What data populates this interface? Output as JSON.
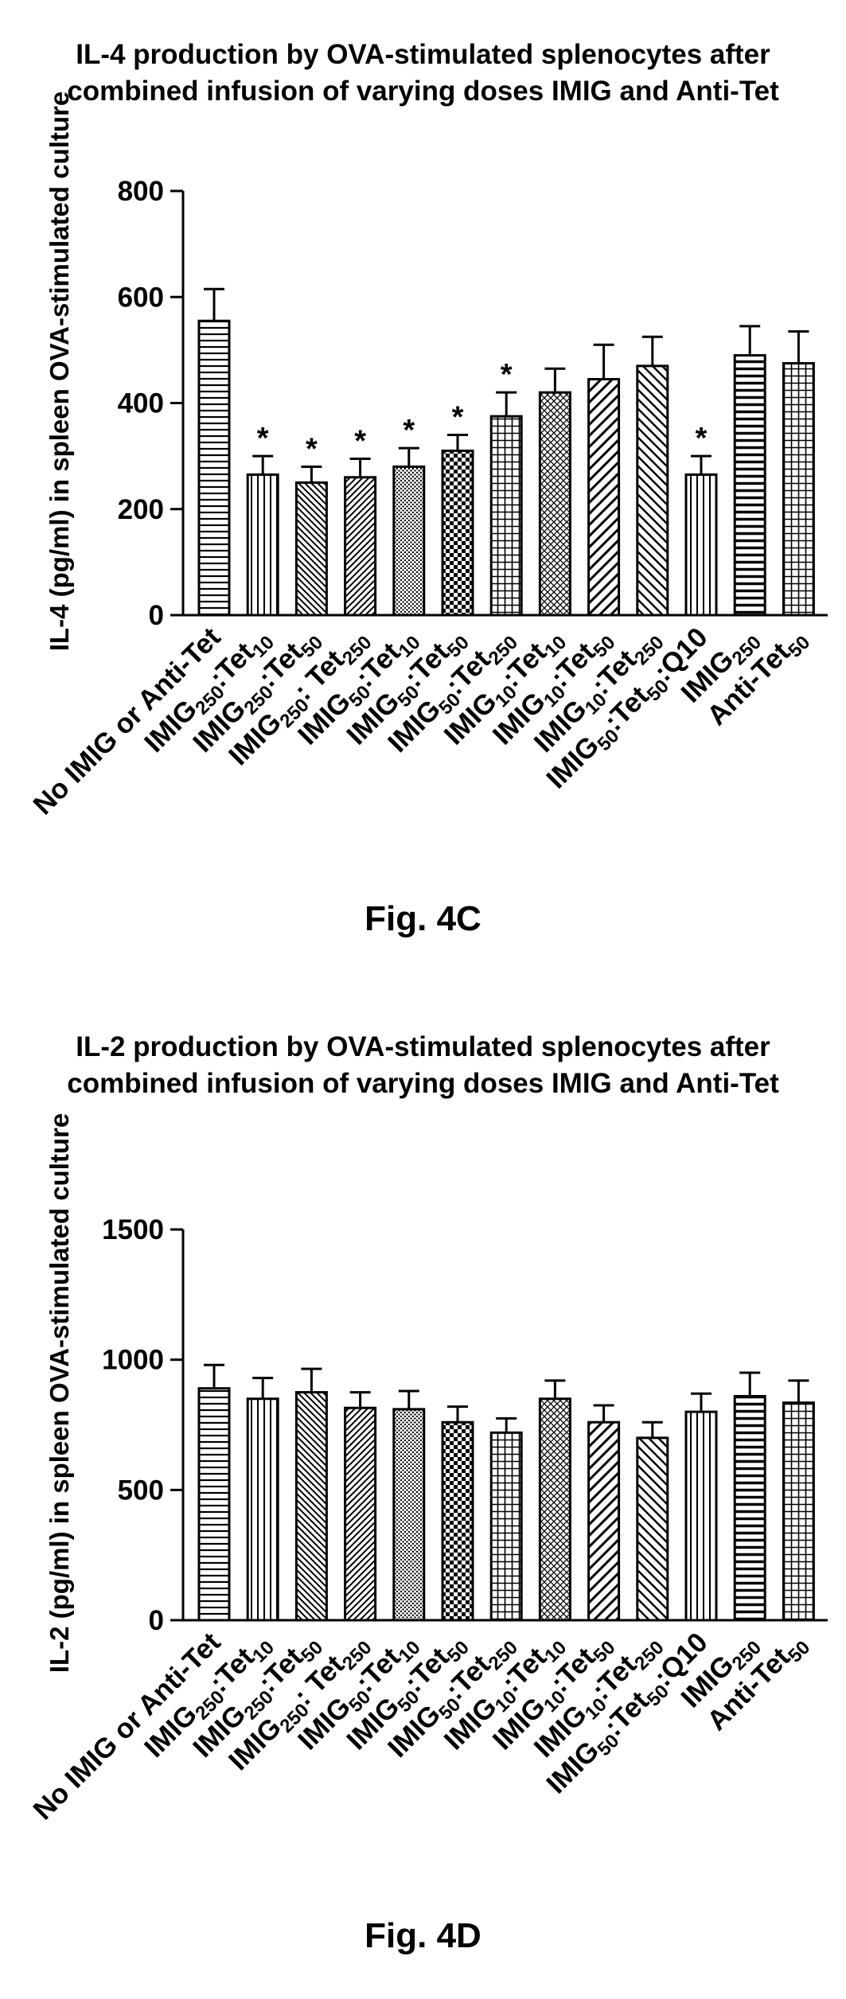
{
  "figures": [
    {
      "caption": "Fig. 4C",
      "chart_data": {
        "type": "bar",
        "title_lines": [
          "IL-4 production by OVA-stimulated splenocytes after",
          "combined infusion of varying doses IMIG and  Anti-Tet"
        ],
        "ylabel": "IL-4 (pg/ml) in spleen OVA-stimulated culture",
        "ylim": [
          0,
          800
        ],
        "yticks": [
          "0",
          "200",
          "400",
          "600",
          "800"
        ],
        "ytick_values": [
          0,
          200,
          400,
          600,
          800
        ],
        "categories": [
          [
            [
              "No IMIG or Anti-Tet",
              ""
            ]
          ],
          [
            [
              "IMIG",
              ""
            ],
            [
              "250",
              "sub"
            ],
            [
              ":Tet",
              ""
            ],
            [
              "10",
              "sub"
            ]
          ],
          [
            [
              "IMIG",
              ""
            ],
            [
              "250",
              "sub"
            ],
            [
              ":Tet",
              ""
            ],
            [
              "50",
              "sub"
            ]
          ],
          [
            [
              "IMIG",
              ""
            ],
            [
              "250",
              "sub"
            ],
            [
              ": Tet",
              ""
            ],
            [
              "250",
              "sub"
            ]
          ],
          [
            [
              "IMIG",
              ""
            ],
            [
              "50",
              "sub"
            ],
            [
              ":Tet",
              ""
            ],
            [
              "10",
              "sub"
            ]
          ],
          [
            [
              "IMIG",
              ""
            ],
            [
              "50",
              "sub"
            ],
            [
              ":Tet",
              ""
            ],
            [
              "50",
              "sub"
            ]
          ],
          [
            [
              "IMIG",
              ""
            ],
            [
              "50",
              "sub"
            ],
            [
              ":Tet",
              ""
            ],
            [
              "250",
              "sub"
            ]
          ],
          [
            [
              "IMIG",
              ""
            ],
            [
              "10",
              "sub"
            ],
            [
              ":Tet",
              ""
            ],
            [
              "10",
              "sub"
            ]
          ],
          [
            [
              "IMIG",
              ""
            ],
            [
              "10",
              "sub"
            ],
            [
              ":Tet",
              ""
            ],
            [
              "50",
              "sub"
            ]
          ],
          [
            [
              "IMIG",
              ""
            ],
            [
              "10",
              "sub"
            ],
            [
              ":Tet",
              ""
            ],
            [
              "250",
              "sub"
            ]
          ],
          [
            [
              "IMIG",
              ""
            ],
            [
              "50",
              "sub"
            ],
            [
              ":Tet",
              ""
            ],
            [
              "50",
              "sub"
            ],
            [
              ":Q10",
              ""
            ]
          ],
          [
            [
              "IMIG",
              ""
            ],
            [
              "250",
              "sub"
            ]
          ],
          [
            [
              "Anti-Tet",
              ""
            ],
            [
              "50",
              "sub"
            ]
          ]
        ],
        "values": [
          555,
          265,
          250,
          260,
          280,
          310,
          375,
          420,
          445,
          470,
          265,
          490,
          475
        ],
        "errors": [
          60,
          35,
          30,
          35,
          35,
          30,
          45,
          45,
          65,
          55,
          35,
          55,
          60
        ],
        "significance": [
          "",
          "*",
          "*",
          "*",
          "*",
          "*",
          "*",
          "",
          "",
          "",
          "*",
          "",
          ""
        ],
        "patterns": [
          "hlines",
          "vlines",
          "hatch-left",
          "hatch-right",
          "dots",
          "checker",
          "grid",
          "cross",
          "diag-right",
          "diag-left",
          "vlines",
          "hlines-wide",
          "grid"
        ]
      }
    },
    {
      "caption": "Fig. 4D",
      "chart_data": {
        "type": "bar",
        "title_lines": [
          "IL-2 production by OVA-stimulated splenocytes after",
          "combined infusion of varying doses IMIG and  Anti-Tet"
        ],
        "ylabel": "IL-2 (pg/ml) in spleen OVA-stimulated culture",
        "ylim": [
          0,
          1500
        ],
        "yticks": [
          "0",
          "500",
          "1000",
          "1500"
        ],
        "ytick_values": [
          0,
          500,
          1000,
          1500
        ],
        "categories": [
          [
            [
              "No IMIG or Anti-Tet",
              ""
            ]
          ],
          [
            [
              "IMIG",
              ""
            ],
            [
              "250",
              "sub"
            ],
            [
              ":Tet",
              ""
            ],
            [
              "10",
              "sub"
            ]
          ],
          [
            [
              "IMIG",
              ""
            ],
            [
              "250",
              "sub"
            ],
            [
              ":Tet",
              ""
            ],
            [
              "50",
              "sub"
            ]
          ],
          [
            [
              "IMIG",
              ""
            ],
            [
              "250",
              "sub"
            ],
            [
              ": Tet",
              ""
            ],
            [
              "250",
              "sub"
            ]
          ],
          [
            [
              "IMIG",
              ""
            ],
            [
              "50",
              "sub"
            ],
            [
              ":Tet",
              ""
            ],
            [
              "10",
              "sub"
            ]
          ],
          [
            [
              "IMIG",
              ""
            ],
            [
              "50",
              "sub"
            ],
            [
              ":Tet",
              ""
            ],
            [
              "50",
              "sub"
            ]
          ],
          [
            [
              "IMIG",
              ""
            ],
            [
              "50",
              "sub"
            ],
            [
              ":Tet",
              ""
            ],
            [
              "250",
              "sub"
            ]
          ],
          [
            [
              "IMIG",
              ""
            ],
            [
              "10",
              "sub"
            ],
            [
              ":Tet",
              ""
            ],
            [
              "10",
              "sub"
            ]
          ],
          [
            [
              "IMIG",
              ""
            ],
            [
              "10",
              "sub"
            ],
            [
              ":Tet",
              ""
            ],
            [
              "50",
              "sub"
            ]
          ],
          [
            [
              "IMIG",
              ""
            ],
            [
              "10",
              "sub"
            ],
            [
              ":Tet",
              ""
            ],
            [
              "250",
              "sub"
            ]
          ],
          [
            [
              "IMIG",
              ""
            ],
            [
              "50",
              "sub"
            ],
            [
              ":Tet",
              ""
            ],
            [
              "50",
              "sub"
            ],
            [
              ":Q10",
              ""
            ]
          ],
          [
            [
              "IMIG",
              ""
            ],
            [
              "250",
              "sub"
            ]
          ],
          [
            [
              "Anti-Tet",
              ""
            ],
            [
              "50",
              "sub"
            ]
          ]
        ],
        "values": [
          890,
          850,
          875,
          815,
          810,
          760,
          720,
          850,
          760,
          700,
          800,
          860,
          835
        ],
        "errors": [
          90,
          80,
          90,
          60,
          70,
          60,
          55,
          70,
          65,
          60,
          70,
          90,
          85
        ],
        "significance": [
          "",
          "",
          "",
          "",
          "",
          "",
          "",
          "",
          "",
          "",
          "",
          "",
          ""
        ],
        "patterns": [
          "hlines",
          "vlines",
          "hatch-left",
          "hatch-right",
          "dots",
          "checker",
          "grid",
          "cross",
          "diag-right",
          "diag-left",
          "vlines",
          "hlines-wide",
          "grid"
        ]
      }
    }
  ]
}
